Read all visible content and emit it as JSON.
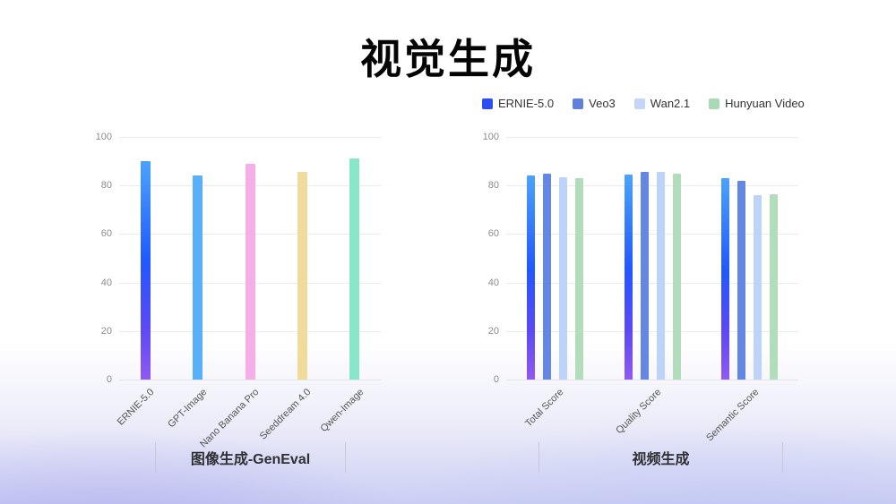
{
  "title": "视觉生成",
  "legend": {
    "items": [
      {
        "label": "ERNIE-5.0",
        "color": "#2b4ff2",
        "gradient": true
      },
      {
        "label": "Veo3",
        "color": "#5f80dd",
        "gradient": false
      },
      {
        "label": "Wan2.1",
        "color": "#c3d6fa",
        "gradient": false
      },
      {
        "label": "Hunyuan Video",
        "color": "#a9dab4",
        "gradient": false
      }
    ]
  },
  "captions": {
    "left": "图像生成-GenEval",
    "right": "视频生成"
  },
  "colors": {
    "ernie_gradient": [
      "#4aa3fb",
      "#2158ff",
      "#5b49f6",
      "#9059f1"
    ],
    "background_bottom_tint": "#cbcff3"
  },
  "chart_data": [
    {
      "type": "bar",
      "title": "图像生成-GenEval",
      "categories": [
        "ERNIE-5.0",
        "GPT-Image",
        "Nano Banana Pro",
        "Seeddream 4.0",
        "Qwen-Image"
      ],
      "values": [
        90,
        84,
        89,
        85.5,
        91
      ],
      "bar_colors": [
        "gradient",
        "#58b1f8",
        "#f6aee9",
        "#f1db9b",
        "#88e6ca"
      ],
      "xlabel": "",
      "ylabel": "",
      "ylim": [
        0,
        100
      ],
      "yticks": [
        0,
        20,
        40,
        60,
        80,
        100
      ],
      "grid": true,
      "legend_position": "none"
    },
    {
      "type": "bar",
      "title": "视频生成",
      "categories": [
        "Total Score",
        "Quality Score",
        "Semantic Score"
      ],
      "series": [
        {
          "name": "ERNIE-5.0",
          "values": [
            84,
            84.5,
            83
          ],
          "color": "gradient"
        },
        {
          "name": "Veo3",
          "values": [
            85,
            85.5,
            82
          ],
          "color": "#6487e3"
        },
        {
          "name": "Wan2.1",
          "values": [
            83.5,
            85.5,
            76
          ],
          "color": "#bdd3fa"
        },
        {
          "name": "Hunyuan Video",
          "values": [
            83,
            85,
            76.5
          ],
          "color": "#b2ddba"
        }
      ],
      "xlabel": "",
      "ylabel": "",
      "ylim": [
        0,
        100
      ],
      "yticks": [
        0,
        20,
        40,
        60,
        80,
        100
      ],
      "grid": true,
      "legend_position": "top-right"
    }
  ]
}
